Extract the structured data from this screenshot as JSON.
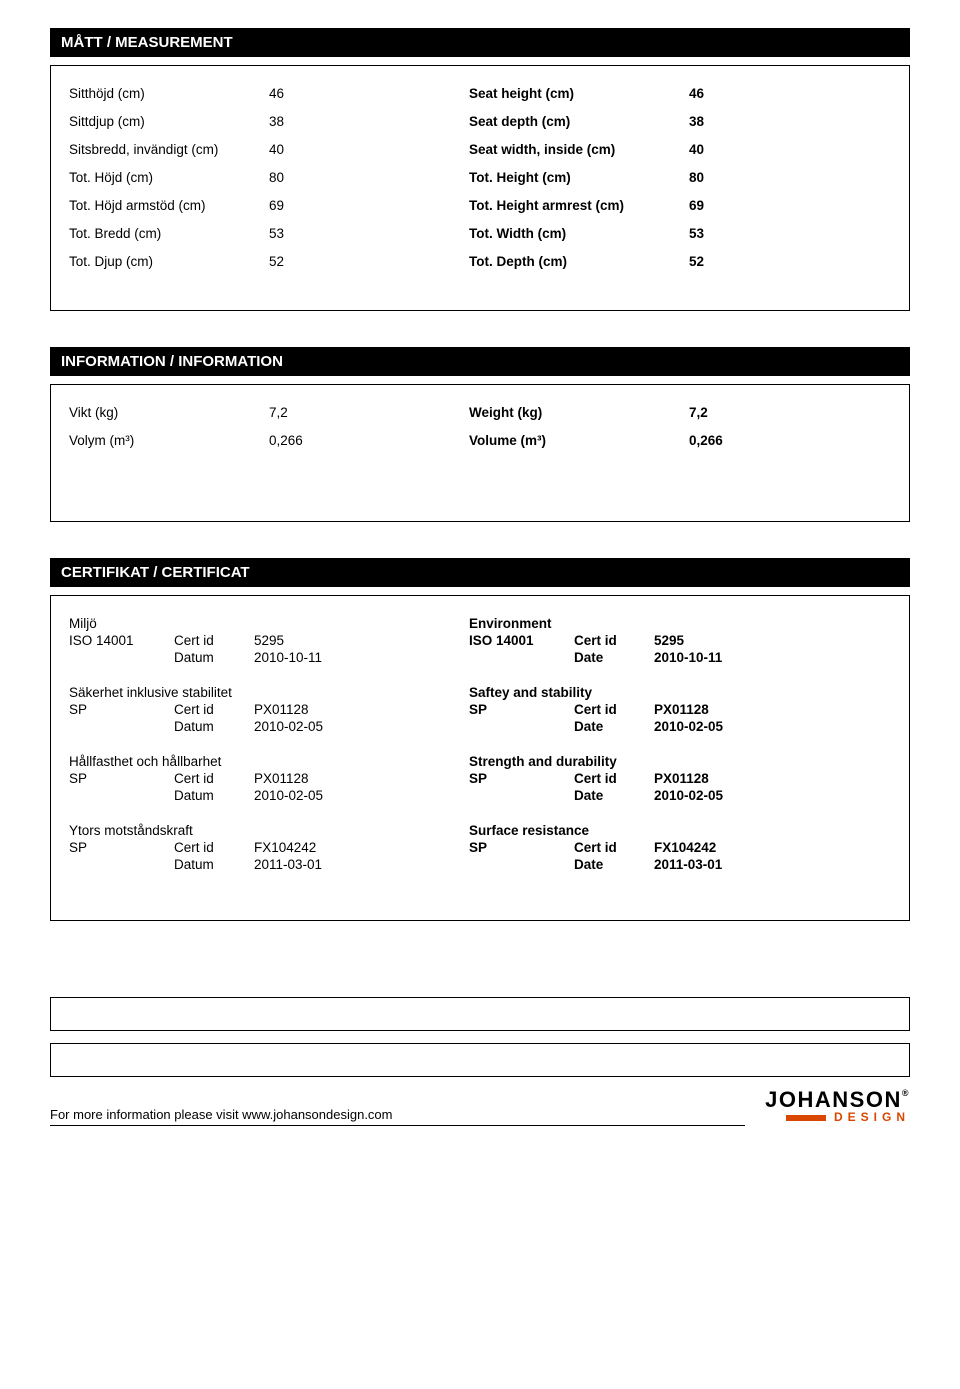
{
  "sections": {
    "measurement": {
      "header": "MÅTT / MEASUREMENT",
      "rows": [
        {
          "ll": "Sitthöjd (cm)",
          "lv": "46",
          "rl": "Seat height (cm)",
          "rv": "46"
        },
        {
          "ll": "Sittdjup (cm)",
          "lv": "38",
          "rl": "Seat depth (cm)",
          "rv": "38"
        },
        {
          "ll": "Sitsbredd, invändigt (cm)",
          "lv": "40",
          "rl": "Seat width, inside (cm)",
          "rv": "40"
        },
        {
          "ll": "Tot. Höjd (cm)",
          "lv": "80",
          "rl": "Tot. Height (cm)",
          "rv": "80"
        },
        {
          "ll": "Tot. Höjd armstöd (cm)",
          "lv": "69",
          "rl": "Tot. Height armrest (cm)",
          "rv": "69"
        },
        {
          "ll": "Tot. Bredd (cm)",
          "lv": "53",
          "rl": "Tot. Width (cm)",
          "rv": "53"
        },
        {
          "ll": "Tot. Djup (cm)",
          "lv": "52",
          "rl": "Tot. Depth (cm)",
          "rv": "52"
        }
      ]
    },
    "information": {
      "header": "INFORMATION / INFORMATION",
      "rows": [
        {
          "ll": "Vikt (kg)",
          "lv": "7,2",
          "rl": "Weight (kg)",
          "rv": "7,2"
        },
        {
          "ll": "Volym (m³)",
          "lv": "0,266",
          "rl": "Volume (m³)",
          "rv": "0,266"
        }
      ]
    },
    "certificate": {
      "header": "CERTIFIKAT / CERTIFICAT",
      "groups": [
        {
          "title_l": "Miljö",
          "title_r": "Environment",
          "org_l": "ISO 14001",
          "certlabel_l": "Cert id",
          "certid_l": "5295",
          "datelabel_l": "Datum",
          "date_l": "2010-10-11",
          "org_r": "ISO 14001",
          "certlabel_r": "Cert id",
          "certid_r": "5295",
          "datelabel_r": "Date",
          "date_r": "2010-10-11"
        },
        {
          "title_l": "Säkerhet inklusive stabilitet",
          "title_r": "Saftey and stability",
          "org_l": "SP",
          "certlabel_l": "Cert id",
          "certid_l": "PX01128",
          "datelabel_l": "Datum",
          "date_l": "2010-02-05",
          "org_r": "SP",
          "certlabel_r": "Cert id",
          "certid_r": "PX01128",
          "datelabel_r": "Date",
          "date_r": "2010-02-05"
        },
        {
          "title_l": "Hållfasthet och hållbarhet",
          "title_r": "Strength and durability",
          "org_l": "SP",
          "certlabel_l": "Cert id",
          "certid_l": "PX01128",
          "datelabel_l": "Datum",
          "date_l": "2010-02-05",
          "org_r": "SP",
          "certlabel_r": "Cert id",
          "certid_r": "PX01128",
          "datelabel_r": "Date",
          "date_r": "2010-02-05"
        },
        {
          "title_l": "Ytors motståndskraft",
          "title_r": "Surface resistance",
          "org_l": "SP",
          "certlabel_l": "Cert id",
          "certid_l": "FX104242",
          "datelabel_l": "Datum",
          "date_l": "2011-03-01",
          "org_r": "SP",
          "certlabel_r": "Cert id",
          "certid_r": "FX104242",
          "datelabel_r": "Date",
          "date_r": "2011-03-01"
        }
      ]
    }
  },
  "footer": {
    "text": "For more information please visit www.johansondesign.com",
    "logo_main": "JOHANSON",
    "logo_sub": "DESIGN"
  },
  "colors": {
    "header_bg": "#000000",
    "header_fg": "#ffffff",
    "border": "#000000",
    "accent": "#d94700"
  }
}
